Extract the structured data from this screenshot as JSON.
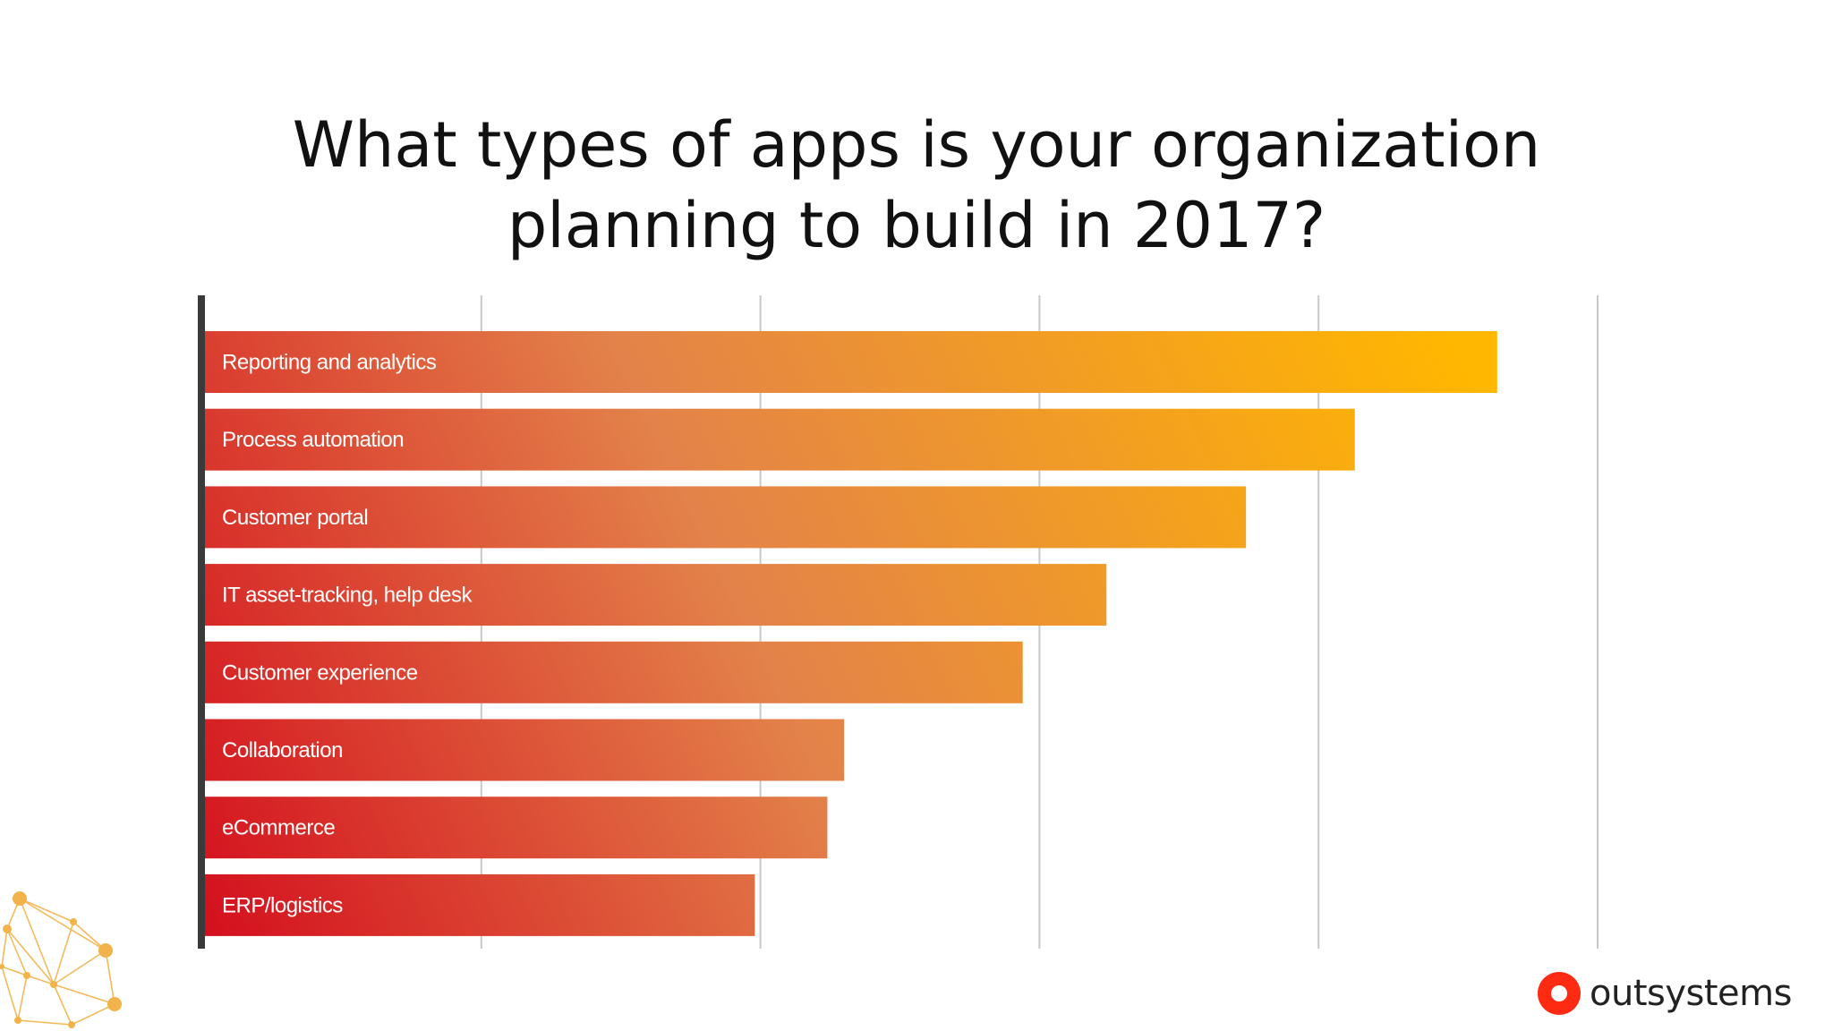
{
  "title": {
    "line1": "What types of apps is your organization",
    "line2": "planning to build in 2017?"
  },
  "brand": {
    "name": "outsystems",
    "logo_color": "#ff2a12"
  },
  "colors": {
    "bar_start": "#d4101e",
    "bar_mid": "#e3824a",
    "bar_end": "#ffb700",
    "axis": "#3a3a3a",
    "grid": "#c8c8c8",
    "decoration": "#f2b34a"
  },
  "icons": [
    "network-graph-decoration",
    "outsystems-logo"
  ],
  "chart_data": {
    "type": "bar",
    "orientation": "horizontal",
    "categories": [
      "Reporting and analytics",
      "Process automation",
      "Customer portal",
      "IT asset-tracking, help desk",
      "Customer experience",
      "Collaboration",
      "eCommerce",
      "ERP/logistics"
    ],
    "values": [
      46.4,
      41.3,
      37.4,
      32.4,
      29.4,
      23.0,
      22.4,
      19.8
    ],
    "xlim": [
      0,
      50
    ],
    "grid": true,
    "tick_labels_shown": false,
    "labels_inside_bars": true,
    "legend": "none"
  }
}
